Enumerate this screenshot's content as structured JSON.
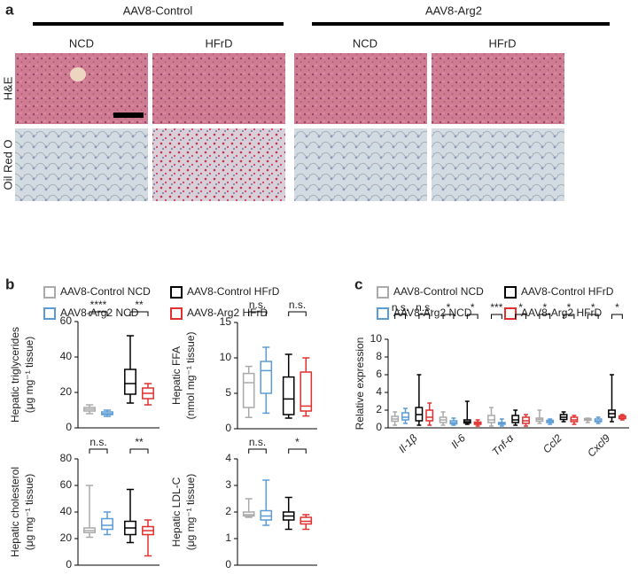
{
  "panel_a": {
    "label": "a",
    "groups": [
      "AAV8-Control",
      "AAV8-Arg2"
    ],
    "columns": [
      "NCD",
      "HFrD",
      "NCD",
      "HFrD"
    ],
    "rows": [
      "H&E",
      "Oil Red O"
    ]
  },
  "chart_data": [
    {
      "type": "box",
      "panel_label": "b",
      "ylabel": [
        "Hepatic triglycerides",
        "(μg mg⁻¹ tissue)"
      ],
      "categories": [
        null
      ],
      "ylim": [
        0,
        60
      ],
      "yticks": [
        0,
        20,
        40,
        60
      ],
      "series": [
        {
          "name": "AAV8-Control NCD",
          "color": "#aaaaaa",
          "min": [
            8
          ],
          "q1": [
            9.5
          ],
          "median": [
            10.5
          ],
          "q3": [
            11.5
          ],
          "max": [
            13
          ]
        },
        {
          "name": "AAV8-Arg2 NCD",
          "color": "#5b9bd5",
          "min": [
            6.5
          ],
          "q1": [
            7.5
          ],
          "median": [
            8
          ],
          "q3": [
            9
          ],
          "max": [
            10
          ]
        },
        {
          "name": "AAV8-Control HFrD",
          "color": "#000000",
          "min": [
            14
          ],
          "q1": [
            19
          ],
          "median": [
            25
          ],
          "q3": [
            33
          ],
          "max": [
            52
          ]
        },
        {
          "name": "AAV8-Arg2 HFrD",
          "color": "#e0302f",
          "min": [
            13
          ],
          "q1": [
            16.5
          ],
          "median": [
            19.5
          ],
          "q3": [
            22.5
          ],
          "max": [
            25
          ]
        }
      ],
      "annotations": [
        [
          "****",
          "**"
        ]
      ]
    },
    {
      "type": "box",
      "ylabel": [
        "Hepatic FFA",
        "(nmol mg⁻¹ tissue)"
      ],
      "categories": [
        null
      ],
      "ylim": [
        0,
        15
      ],
      "yticks": [
        0,
        5,
        10,
        15
      ],
      "series": [
        {
          "color": "#aaaaaa",
          "min": [
            1.6
          ],
          "q1": [
            3
          ],
          "median": [
            6.5
          ],
          "q3": [
            7.8
          ],
          "max": [
            8.8
          ]
        },
        {
          "color": "#5b9bd5",
          "min": [
            2.2
          ],
          "q1": [
            5
          ],
          "median": [
            8.2
          ],
          "q3": [
            9.5
          ],
          "max": [
            11.5
          ]
        },
        {
          "color": "#000000",
          "min": [
            1.5
          ],
          "q1": [
            2
          ],
          "median": [
            4.2
          ],
          "q3": [
            7.3
          ],
          "max": [
            10.5
          ]
        },
        {
          "color": "#e0302f",
          "min": [
            1.8
          ],
          "q1": [
            2.5
          ],
          "median": [
            3.2
          ],
          "q3": [
            8
          ],
          "max": [
            10
          ]
        }
      ],
      "annotations": [
        [
          "n.s.",
          "n.s."
        ]
      ]
    },
    {
      "type": "box",
      "ylabel": [
        "Hepatic cholesterol",
        "(μg mg⁻¹ tissue)"
      ],
      "categories": [
        null
      ],
      "ylim": [
        0,
        80
      ],
      "yticks": [
        0,
        20,
        40,
        60,
        80
      ],
      "series": [
        {
          "color": "#aaaaaa",
          "min": [
            21
          ],
          "q1": [
            24.5
          ],
          "median": [
            26
          ],
          "q3": [
            28
          ],
          "max": [
            60
          ]
        },
        {
          "color": "#5b9bd5",
          "min": [
            23
          ],
          "q1": [
            27
          ],
          "median": [
            30
          ],
          "q3": [
            35
          ],
          "max": [
            40
          ]
        },
        {
          "color": "#000000",
          "min": [
            17
          ],
          "q1": [
            23
          ],
          "median": [
            28
          ],
          "q3": [
            33
          ],
          "max": [
            57
          ]
        },
        {
          "color": "#e0302f",
          "min": [
            7
          ],
          "q1": [
            23
          ],
          "median": [
            26
          ],
          "q3": [
            29
          ],
          "max": [
            34
          ]
        }
      ],
      "annotations": [
        [
          "n.s.",
          "**"
        ]
      ]
    },
    {
      "type": "box",
      "ylabel": [
        "Hepatic LDL-C",
        "(μg mg⁻¹ tissue)"
      ],
      "categories": [
        null
      ],
      "ylim": [
        0,
        4
      ],
      "yticks": [
        0,
        1,
        2,
        3,
        4
      ],
      "series": [
        {
          "color": "#aaaaaa",
          "min": [
            1.8
          ],
          "q1": [
            1.85
          ],
          "median": [
            1.9
          ],
          "q3": [
            2.0
          ],
          "max": [
            2.5
          ]
        },
        {
          "color": "#5b9bd5",
          "min": [
            1.5
          ],
          "q1": [
            1.7
          ],
          "median": [
            1.85
          ],
          "q3": [
            2.05
          ],
          "max": [
            3.2
          ]
        },
        {
          "color": "#000000",
          "min": [
            1.35
          ],
          "q1": [
            1.7
          ],
          "median": [
            1.85
          ],
          "q3": [
            2.0
          ],
          "max": [
            2.55
          ]
        },
        {
          "color": "#e0302f",
          "min": [
            1.35
          ],
          "q1": [
            1.55
          ],
          "median": [
            1.65
          ],
          "q3": [
            1.8
          ],
          "max": [
            1.9
          ]
        }
      ],
      "annotations": [
        [
          "n.s.",
          "*"
        ]
      ]
    },
    {
      "type": "box",
      "panel_label": "c",
      "ylabel": [
        "Relative expression"
      ],
      "categories": [
        "Il-1β",
        "Il-6",
        "Tnf-α",
        "Ccl2",
        "Cxcl9"
      ],
      "ylim": [
        0,
        10
      ],
      "yticks": [
        0,
        2,
        4,
        6,
        8,
        10
      ],
      "series": [
        {
          "name": "AAV8-Control NCD",
          "color": "#aaaaaa",
          "min": [
            0.3,
            0.3,
            0.2,
            0.5,
            0.6
          ],
          "q1": [
            0.75,
            0.6,
            0.6,
            0.75,
            0.85
          ],
          "median": [
            1.0,
            0.9,
            0.9,
            0.95,
            0.95
          ],
          "q3": [
            1.3,
            1.2,
            1.4,
            1.1,
            1.05
          ],
          "max": [
            1.8,
            1.8,
            2.3,
            2.0,
            1.1
          ]
        },
        {
          "name": "AAV8-Arg2 NCD",
          "color": "#5b9bd5",
          "min": [
            0.5,
            0.3,
            0.2,
            0.4,
            0.5
          ],
          "q1": [
            0.9,
            0.45,
            0.4,
            0.6,
            0.7
          ],
          "median": [
            1.2,
            0.6,
            0.5,
            0.7,
            0.8
          ],
          "q3": [
            1.7,
            0.8,
            0.6,
            0.85,
            1.0
          ],
          "max": [
            2.2,
            1.1,
            1.0,
            1.0,
            1.2
          ]
        },
        {
          "name": "AAV8-Control HFrD",
          "color": "#000000",
          "min": [
            0.3,
            0.4,
            0.3,
            0.7,
            0.7
          ],
          "q1": [
            0.8,
            0.55,
            0.6,
            0.95,
            1.2
          ],
          "median": [
            1.5,
            0.7,
            0.9,
            1.2,
            1.6
          ],
          "q3": [
            2.3,
            0.9,
            1.4,
            1.5,
            2.0
          ],
          "max": [
            6,
            3.0,
            2.0,
            1.8,
            6
          ]
        },
        {
          "name": "AAV8-Arg2 HFrD",
          "color": "#e0302f",
          "min": [
            0.3,
            0.2,
            0.2,
            0.4,
            0.9
          ],
          "q1": [
            0.8,
            0.4,
            0.5,
            0.7,
            1.05
          ],
          "median": [
            1.2,
            0.5,
            0.8,
            0.9,
            1.2
          ],
          "q3": [
            2.0,
            0.65,
            1.2,
            1.2,
            1.35
          ],
          "max": [
            2.8,
            0.9,
            1.5,
            1.4,
            1.5
          ]
        }
      ],
      "annotations": [
        [
          "n.s.",
          "n.s."
        ],
        [
          "*",
          "*"
        ],
        [
          "***",
          "*"
        ],
        [
          "*",
          "*"
        ],
        [
          "*",
          "*"
        ]
      ]
    }
  ]
}
